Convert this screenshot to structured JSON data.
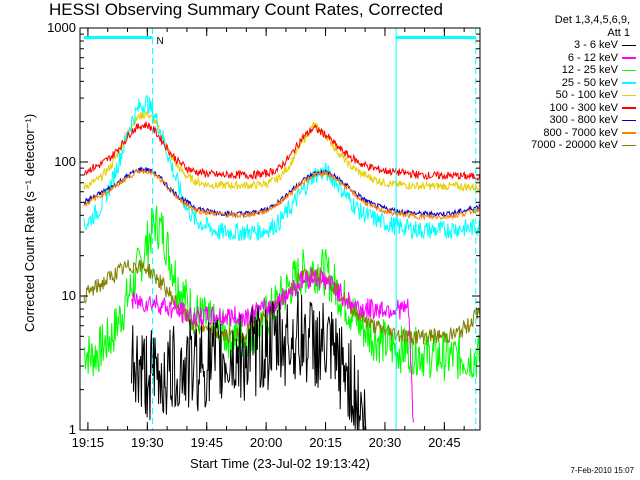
{
  "title": "HESSI Observing Summary Count Rates, Corrected",
  "legend_header": [
    "Det 1,3,4,5,6,9,",
    "Att 1"
  ],
  "xlabel": "Start Time (23-Jul-02 19:13:42)",
  "ylabel": "Corrected Count Rate (s⁻¹ detector⁻¹)",
  "footer": "7-Feb-2010 15:07",
  "annotation_n": "N",
  "chart_data": {
    "type": "line",
    "title": "HESSI Observing Summary Count Rates, Corrected",
    "xlabel": "Start Time (23-Jul-02 19:13:42)",
    "ylabel": "Corrected Count Rate (s⁻¹ detector⁻¹)",
    "yscale": "log",
    "ylim": [
      1,
      1000
    ],
    "xlim": [
      19.2167,
      20.9
    ],
    "x_ticks": [
      19.25,
      19.5,
      19.75,
      20.0,
      20.25,
      20.5,
      20.75
    ],
    "x_tick_labels": [
      "19:15",
      "19:30",
      "19:45",
      "20:00",
      "20:15",
      "20:30",
      "20:45"
    ],
    "y_ticks": [
      1,
      10,
      100,
      1000
    ],
    "y_tick_labels": [
      "1",
      "10",
      "100",
      "1000"
    ],
    "grid": false,
    "legend_position": "outside-right",
    "series": [
      {
        "name": "3 - 6 keV",
        "color": "#000000",
        "x": [
          19.433,
          19.45,
          19.483,
          19.55,
          19.6,
          19.683,
          19.8,
          19.9,
          20.05,
          20.15,
          20.25,
          20.35,
          20.42
        ],
        "values": [
          3.5,
          3,
          2.6,
          2.5,
          2.7,
          3,
          3.2,
          3.5,
          4.5,
          5,
          4,
          2.5,
          1
        ]
      },
      {
        "name": "6 - 12 keV",
        "color": "#ff00ff",
        "x": [
          19.433,
          19.45,
          19.5,
          19.55,
          19.6,
          19.65,
          19.7,
          19.75,
          19.8,
          19.85,
          19.9,
          19.95,
          20.0,
          20.05,
          20.1,
          20.15,
          20.2,
          20.25,
          20.3,
          20.35,
          20.4,
          20.45,
          20.5,
          20.55,
          20.6,
          20.62
        ],
        "values": [
          9,
          9,
          9,
          8.8,
          8,
          7.5,
          7,
          7,
          7,
          7,
          7,
          7.5,
          8,
          9,
          11,
          13,
          14,
          13,
          11,
          9,
          8,
          8,
          8,
          8,
          8,
          1
        ]
      },
      {
        "name": "12 - 25 keV",
        "color": "#00ff00",
        "x": [
          19.233,
          19.267,
          19.3,
          19.35,
          19.4,
          19.45,
          19.5,
          19.533,
          19.567,
          19.6,
          19.633,
          19.667,
          19.7,
          19.75,
          19.8,
          19.85,
          19.9,
          19.95,
          20.0,
          20.05,
          20.1,
          20.15,
          20.2,
          20.25,
          20.3,
          20.35,
          20.4,
          20.45,
          20.5,
          20.55,
          20.6,
          20.65,
          20.7,
          20.75,
          20.8,
          20.85,
          20.9
        ],
        "values": [
          4,
          3.5,
          4,
          5,
          8,
          14,
          25,
          35,
          30,
          18,
          12,
          9,
          7.5,
          6.5,
          5.5,
          5,
          5,
          5.5,
          7,
          9,
          12,
          15,
          16,
          15,
          11,
          8,
          6,
          5,
          4.5,
          4,
          4,
          3.8,
          3.6,
          3.5,
          3.5,
          3.5,
          3.5
        ]
      },
      {
        "name": "25 - 50 keV",
        "color": "#00ffff",
        "x": [
          19.233,
          19.3,
          19.35,
          19.4,
          19.433,
          19.467,
          19.5,
          19.533,
          19.567,
          19.6,
          19.633,
          19.667,
          19.7,
          19.75,
          19.8,
          19.85,
          19.9,
          19.95,
          20.0,
          20.05,
          20.1,
          20.15,
          20.2,
          20.25,
          20.3,
          20.35,
          20.4,
          20.45,
          20.5,
          20.55,
          20.6,
          20.65,
          20.7,
          20.75,
          20.8,
          20.85,
          20.9
        ],
        "values": [
          33,
          45,
          70,
          130,
          200,
          260,
          280,
          220,
          150,
          95,
          65,
          45,
          37,
          33,
          30,
          30,
          30,
          30,
          31,
          35,
          45,
          60,
          80,
          85,
          70,
          52,
          42,
          38,
          35,
          33,
          32,
          31,
          31,
          31,
          32,
          32,
          33
        ]
      },
      {
        "name": "50 - 100 keV",
        "color": "#e8d000",
        "x": [
          19.233,
          19.3,
          19.35,
          19.4,
          19.433,
          19.467,
          19.5,
          19.533,
          19.567,
          19.6,
          19.633,
          19.667,
          19.7,
          19.75,
          19.8,
          19.85,
          19.9,
          19.95,
          20.0,
          20.05,
          20.1,
          20.15,
          20.2,
          20.25,
          20.3,
          20.35,
          20.4,
          20.45,
          20.5,
          20.55,
          20.6,
          20.65,
          20.7,
          20.75,
          20.8,
          20.85,
          20.9
        ],
        "values": [
          65,
          75,
          95,
          140,
          190,
          220,
          230,
          200,
          150,
          110,
          90,
          78,
          72,
          68,
          67,
          67,
          67,
          67,
          69,
          75,
          95,
          140,
          190,
          160,
          120,
          95,
          82,
          75,
          70,
          68,
          67,
          66,
          66,
          66,
          66,
          65,
          65
        ]
      },
      {
        "name": "100 - 300 keV",
        "color": "#ff0000",
        "x": [
          19.233,
          19.3,
          19.35,
          19.4,
          19.433,
          19.467,
          19.5,
          19.533,
          19.567,
          19.6,
          19.633,
          19.667,
          19.7,
          19.75,
          19.8,
          19.85,
          19.9,
          19.95,
          20.0,
          20.05,
          20.1,
          20.15,
          20.2,
          20.25,
          20.3,
          20.35,
          20.4,
          20.45,
          20.5,
          20.55,
          20.6,
          20.65,
          20.7,
          20.75,
          20.8,
          20.85,
          20.9
        ],
        "values": [
          85,
          95,
          110,
          140,
          170,
          185,
          190,
          170,
          140,
          115,
          100,
          90,
          85,
          82,
          80,
          80,
          80,
          80,
          82,
          88,
          110,
          150,
          180,
          160,
          130,
          110,
          97,
          90,
          86,
          84,
          82,
          80,
          79,
          79,
          79,
          78,
          78
        ]
      },
      {
        "name": "300 - 800 keV",
        "color": "#0000cc",
        "x": [
          19.233,
          19.3,
          19.35,
          19.4,
          19.433,
          19.467,
          19.5,
          19.533,
          19.567,
          19.6,
          19.633,
          19.667,
          19.7,
          19.75,
          19.8,
          19.85,
          19.9,
          19.95,
          20.0,
          20.05,
          20.1,
          20.15,
          20.2,
          20.25,
          20.3,
          20.35,
          20.4,
          20.45,
          20.5,
          20.55,
          20.6,
          20.65,
          20.7,
          20.75,
          20.8,
          20.85,
          20.9
        ],
        "values": [
          50,
          58,
          65,
          75,
          82,
          88,
          88,
          82,
          72,
          62,
          55,
          50,
          46,
          43,
          42,
          41,
          41,
          42,
          44,
          50,
          60,
          72,
          82,
          84,
          76,
          64,
          54,
          48,
          45,
          43,
          42,
          41,
          41,
          41,
          42,
          44,
          47
        ]
      },
      {
        "name": "800 - 7000 keV",
        "color": "#ff8000",
        "x": [
          19.233,
          19.3,
          19.35,
          19.4,
          19.433,
          19.467,
          19.5,
          19.533,
          19.567,
          19.6,
          19.633,
          19.667,
          19.7,
          19.75,
          19.8,
          19.85,
          19.9,
          19.95,
          20.0,
          20.05,
          20.1,
          20.15,
          20.2,
          20.25,
          20.3,
          20.35,
          20.4,
          20.45,
          20.5,
          20.55,
          20.6,
          20.65,
          20.7,
          20.75,
          20.8,
          20.85,
          20.9
        ],
        "values": [
          48,
          56,
          63,
          73,
          80,
          86,
          86,
          80,
          70,
          60,
          53,
          48,
          44,
          42,
          41,
          40,
          40,
          41,
          43,
          49,
          58,
          70,
          80,
          82,
          74,
          62,
          52,
          46,
          43,
          41,
          40,
          39,
          39,
          39,
          40,
          42,
          45
        ]
      },
      {
        "name": "7000 - 20000 keV",
        "color": "#808000",
        "x": [
          19.233,
          19.267,
          19.3,
          19.35,
          19.4,
          19.45,
          19.5,
          19.55,
          19.6,
          19.65,
          19.7,
          19.75,
          19.8,
          19.85,
          19.9,
          19.95,
          20.0,
          20.05,
          20.1,
          20.15,
          20.2,
          20.25,
          20.3,
          20.35,
          20.4,
          20.45,
          20.5,
          20.55,
          20.6,
          20.65,
          20.7,
          20.75,
          20.8,
          20.85,
          20.9
        ],
        "values": [
          10,
          11,
          12,
          14,
          16,
          17,
          16,
          13,
          10,
          7.5,
          6,
          5.5,
          5.2,
          5,
          5.1,
          6,
          7,
          9,
          11,
          14,
          15,
          14,
          11,
          8.5,
          7,
          6,
          5.5,
          5.2,
          5,
          5,
          5,
          5,
          5.2,
          6,
          8
        ]
      }
    ],
    "annotations": [
      {
        "text": "N",
        "x": 19.522
      },
      {
        "type": "vertical-line",
        "x": 19.522,
        "style": "dashed",
        "color": "#00ffff"
      },
      {
        "type": "vertical-line",
        "x": 20.547,
        "style": "solid",
        "color": "#00ffff"
      },
      {
        "type": "vertical-line",
        "x": 20.882,
        "style": "dashed",
        "color": "#00ffff"
      },
      {
        "type": "horizontal-bar",
        "x": [
          19.233,
          19.522
        ],
        "y": 850,
        "color": "#00ffff"
      },
      {
        "type": "horizontal-bar",
        "x": [
          20.547,
          20.882
        ],
        "y": 850,
        "color": "#00ffff"
      }
    ]
  }
}
